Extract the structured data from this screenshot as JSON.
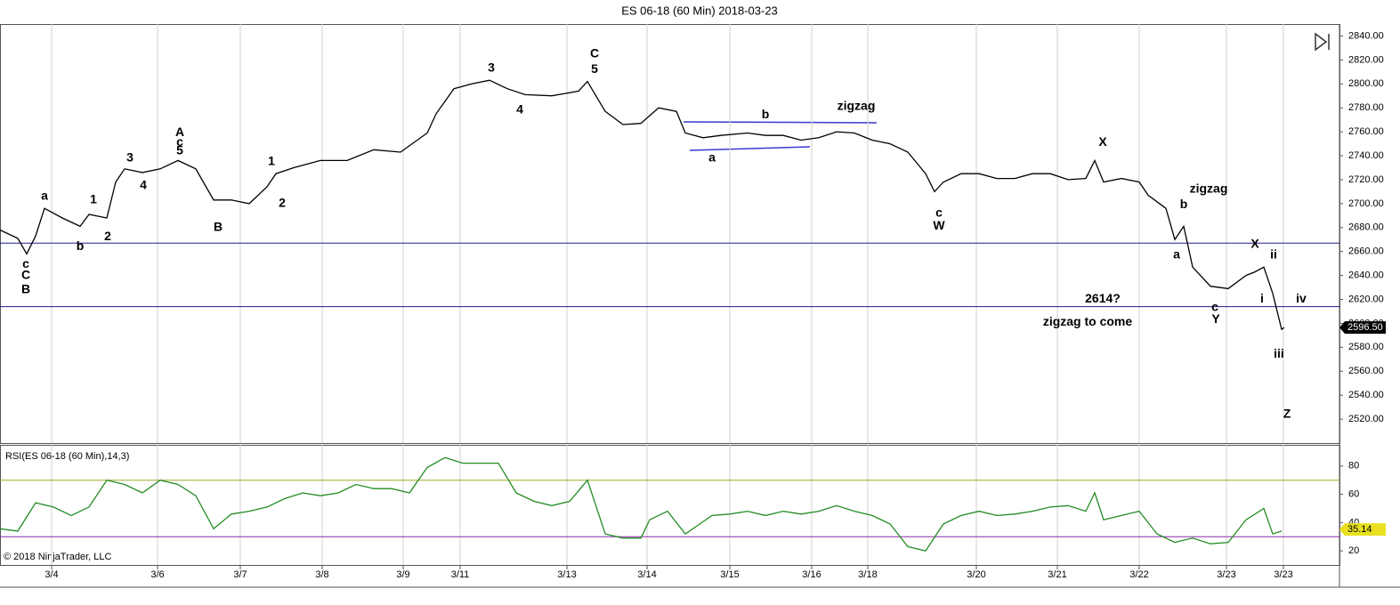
{
  "chart_data": [
    {
      "type": "line",
      "title": "ES 06-18 (60 Min)  2018-03-23",
      "xlim": [
        0,
        150.5
      ],
      "ylim": [
        2500,
        2850
      ],
      "yticks": [
        {
          "value": 2520,
          "label": "2520.00"
        },
        {
          "value": 2540,
          "label": "2540.00"
        },
        {
          "value": 2560,
          "label": "2560.00"
        },
        {
          "value": 2580,
          "label": "2580.00"
        },
        {
          "value": 2600,
          "label": "2600.00"
        },
        {
          "value": 2620,
          "label": "2620.00"
        },
        {
          "value": 2640,
          "label": "2640.00"
        },
        {
          "value": 2660,
          "label": "2660.00"
        },
        {
          "value": 2680,
          "label": "2680.00"
        },
        {
          "value": 2700,
          "label": "2700.00"
        },
        {
          "value": 2720,
          "label": "2720.00"
        },
        {
          "value": 2740,
          "label": "2740.00"
        },
        {
          "value": 2760,
          "label": "2760.00"
        },
        {
          "value": 2780,
          "label": "2780.00"
        },
        {
          "value": 2800,
          "label": "2800.00"
        },
        {
          "value": 2820,
          "label": "2820.00"
        },
        {
          "value": 2840,
          "label": "2840.00"
        }
      ],
      "series": [
        {
          "color": "#000000",
          "x": [
            0,
            2,
            3,
            4,
            5,
            7,
            9,
            10,
            12,
            13,
            14,
            16,
            18,
            20,
            22,
            24,
            26,
            28,
            30,
            31,
            33,
            36,
            39,
            42,
            45,
            48,
            49,
            51,
            53,
            55,
            57,
            59,
            62,
            65,
            66,
            68,
            70,
            72,
            74,
            76,
            77,
            79,
            81,
            84,
            86,
            88,
            90,
            92,
            94,
            96,
            98,
            100,
            102,
            104,
            105,
            106,
            108,
            110,
            112,
            114,
            116,
            118,
            120,
            122,
            123,
            124,
            126,
            128,
            129,
            131,
            132,
            133,
            134,
            136,
            138,
            140,
            141,
            142,
            143,
            144,
            144.3
          ],
          "values": [
            2678,
            2671,
            2658,
            2673,
            2696,
            2688,
            2681,
            2691,
            2688,
            2718,
            2729,
            2726,
            2729,
            2736,
            2729,
            2703,
            2703,
            2700,
            2714,
            2725,
            2730,
            2736,
            2736,
            2745,
            2743,
            2759,
            2775,
            2796,
            2800,
            2803,
            2796,
            2791,
            2790,
            2794,
            2802,
            2777,
            2766,
            2767,
            2780,
            2777,
            2759,
            2755,
            2757,
            2759,
            2757,
            2757,
            2753,
            2755,
            2760,
            2759,
            2753,
            2750,
            2743,
            2725,
            2710,
            2718,
            2725,
            2725,
            2721,
            2721,
            2725,
            2725,
            2720,
            2721,
            2736,
            2718,
            2721,
            2718,
            2707,
            2696,
            2670,
            2681,
            2647,
            2631,
            2629,
            2640,
            2643,
            2647,
            2625,
            2595,
            2596.5
          ]
        }
      ],
      "last_label": {
        "value": 2596.5,
        "label": "2596.50"
      },
      "hlines": [
        {
          "value": 2667,
          "color": "#1c1c8c"
        },
        {
          "value": 2614,
          "color": "#1c1c8c"
        }
      ],
      "annotations": [
        {
          "text": "c",
          "x": 2.9,
          "y": 2649,
          "color": "#000000"
        },
        {
          "text": "C",
          "x": 2.9,
          "y": 2640,
          "color": "#000000"
        },
        {
          "text": "B",
          "x": 2.9,
          "y": 2628,
          "color": "#e00000"
        },
        {
          "text": "a",
          "x": 5,
          "y": 2706,
          "color": "#000000"
        },
        {
          "text": "b",
          "x": 9,
          "y": 2664,
          "color": "#000000"
        },
        {
          "text": "1",
          "x": 10.5,
          "y": 2703,
          "color": "#000000"
        },
        {
          "text": "2",
          "x": 12.1,
          "y": 2672,
          "color": "#000000"
        },
        {
          "text": "3",
          "x": 14.6,
          "y": 2738,
          "color": "#000000"
        },
        {
          "text": "4",
          "x": 16.1,
          "y": 2715,
          "color": "#000000"
        },
        {
          "text": "A",
          "x": 20.2,
          "y": 2759,
          "color": "#1010d0"
        },
        {
          "text": "c",
          "x": 20.2,
          "y": 2751,
          "color": "#000000"
        },
        {
          "text": "5",
          "x": 20.2,
          "y": 2744,
          "color": "#000000"
        },
        {
          "text": "B",
          "x": 24.5,
          "y": 2680,
          "color": "#1010d0"
        },
        {
          "text": "1",
          "x": 30.5,
          "y": 2735,
          "color": "#000000"
        },
        {
          "text": "2",
          "x": 31.7,
          "y": 2700,
          "color": "#000000"
        },
        {
          "text": "3",
          "x": 55.2,
          "y": 2813,
          "color": "#000000"
        },
        {
          "text": "4",
          "x": 58.4,
          "y": 2778,
          "color": "#000000"
        },
        {
          "text": "C",
          "x": 66.8,
          "y": 2825,
          "color": "#1010d0"
        },
        {
          "text": "5",
          "x": 66.8,
          "y": 2812,
          "color": "#000000"
        },
        {
          "text": "a",
          "x": 80,
          "y": 2738,
          "color": "#000000"
        },
        {
          "text": "b",
          "x": 86,
          "y": 2774,
          "color": "#000000"
        },
        {
          "text": "zigzag",
          "x": 96.2,
          "y": 2781,
          "color": "#000000"
        },
        {
          "text": "c",
          "x": 105.5,
          "y": 2692,
          "color": "#000000"
        },
        {
          "text": "W",
          "x": 105.5,
          "y": 2681,
          "color": "#e00000"
        },
        {
          "text": "X",
          "x": 123.9,
          "y": 2751,
          "color": "#e00000"
        },
        {
          "text": "zigzag",
          "x": 135.8,
          "y": 2712,
          "color": "#000000"
        },
        {
          "text": "b",
          "x": 133,
          "y": 2699,
          "color": "#000000"
        },
        {
          "text": "a",
          "x": 132.2,
          "y": 2657,
          "color": "#000000"
        },
        {
          "text": "X",
          "x": 141,
          "y": 2666,
          "color": "#e00000"
        },
        {
          "text": "ii",
          "x": 143.1,
          "y": 2657,
          "color": "#000000"
        },
        {
          "text": "i",
          "x": 141.8,
          "y": 2620,
          "color": "#000000"
        },
        {
          "text": "iv",
          "x": 146.2,
          "y": 2620,
          "color": "#000000"
        },
        {
          "text": "2614?",
          "x": 123.9,
          "y": 2620,
          "color": "#000000"
        },
        {
          "text": "zigzag to come",
          "x": 122.2,
          "y": 2601,
          "color": "#000000"
        },
        {
          "text": "c",
          "x": 136.5,
          "y": 2613,
          "color": "#000000"
        },
        {
          "text": "Y",
          "x": 136.6,
          "y": 2603,
          "color": "#e00000"
        },
        {
          "text": "iii",
          "x": 143.7,
          "y": 2574,
          "color": "#000000"
        },
        {
          "text": "Z",
          "x": 144.6,
          "y": 2524,
          "color": "#e00000"
        }
      ]
    },
    {
      "type": "line",
      "title": "RSI(ES 06-18 (60 Min),14,3)",
      "xlim": [
        0,
        150.5
      ],
      "ylim": [
        10,
        95
      ],
      "yticks": [
        20,
        40,
        60,
        80
      ],
      "xticks": [
        {
          "value": 5.8,
          "label": "3/4"
        },
        {
          "value": 17.7,
          "label": "3/6"
        },
        {
          "value": 27,
          "label": "3/7"
        },
        {
          "value": 36.2,
          "label": "3/8"
        },
        {
          "value": 45.3,
          "label": "3/9"
        },
        {
          "value": 51.7,
          "label": "3/11"
        },
        {
          "value": 63.7,
          "label": "3/13"
        },
        {
          "value": 72.7,
          "label": "3/14"
        },
        {
          "value": 82,
          "label": "3/15"
        },
        {
          "value": 91.2,
          "label": "3/16"
        },
        {
          "value": 97.5,
          "label": "3/18"
        },
        {
          "value": 109.7,
          "label": "3/20"
        },
        {
          "value": 118.8,
          "label": "3/21"
        },
        {
          "value": 128,
          "label": "3/22"
        },
        {
          "value": 137.8,
          "label": "3/23"
        },
        {
          "value": 144.2,
          "label": "3/23"
        }
      ],
      "series": [
        {
          "color": "#228b22",
          "x": [
            0,
            2,
            4,
            6,
            8,
            10,
            12,
            14,
            16,
            18,
            20,
            22,
            24,
            26,
            28,
            30,
            32,
            34,
            36,
            38,
            40,
            42,
            44,
            46,
            48,
            50,
            52,
            54,
            56,
            58,
            60,
            62,
            64,
            66,
            68,
            70,
            72,
            73,
            75,
            77,
            80,
            82,
            84,
            86,
            88,
            90,
            92,
            94,
            96,
            98,
            100,
            102,
            104,
            106,
            108,
            110,
            112,
            114,
            116,
            118,
            120,
            122,
            123,
            124,
            126,
            128,
            130,
            132,
            134,
            136,
            138,
            140,
            142,
            143,
            144
          ],
          "values": [
            35.6,
            34,
            54,
            51,
            45,
            51,
            70,
            67,
            61,
            70,
            67,
            59,
            35.6,
            46,
            48,
            51,
            57,
            61,
            59,
            61,
            67,
            64,
            64,
            61,
            79,
            86,
            82,
            82,
            82,
            61,
            55,
            52,
            55,
            70,
            32,
            29,
            29,
            42,
            48,
            32,
            45,
            46,
            48,
            45,
            48,
            46,
            48,
            52,
            48,
            45,
            39,
            23,
            20,
            39,
            45,
            48,
            45,
            46,
            48,
            51,
            52,
            48,
            61,
            42,
            45,
            48,
            32,
            26,
            29,
            25,
            26,
            42,
            50,
            32,
            34
          ]
        }
      ],
      "last_label": 35.14,
      "hlines": [
        {
          "value": 70,
          "color": "#9aa82a"
        },
        {
          "value": 30,
          "color": "#8a2aa8"
        }
      ],
      "footer": "© 2018 NinjaTrader, LLC"
    }
  ]
}
